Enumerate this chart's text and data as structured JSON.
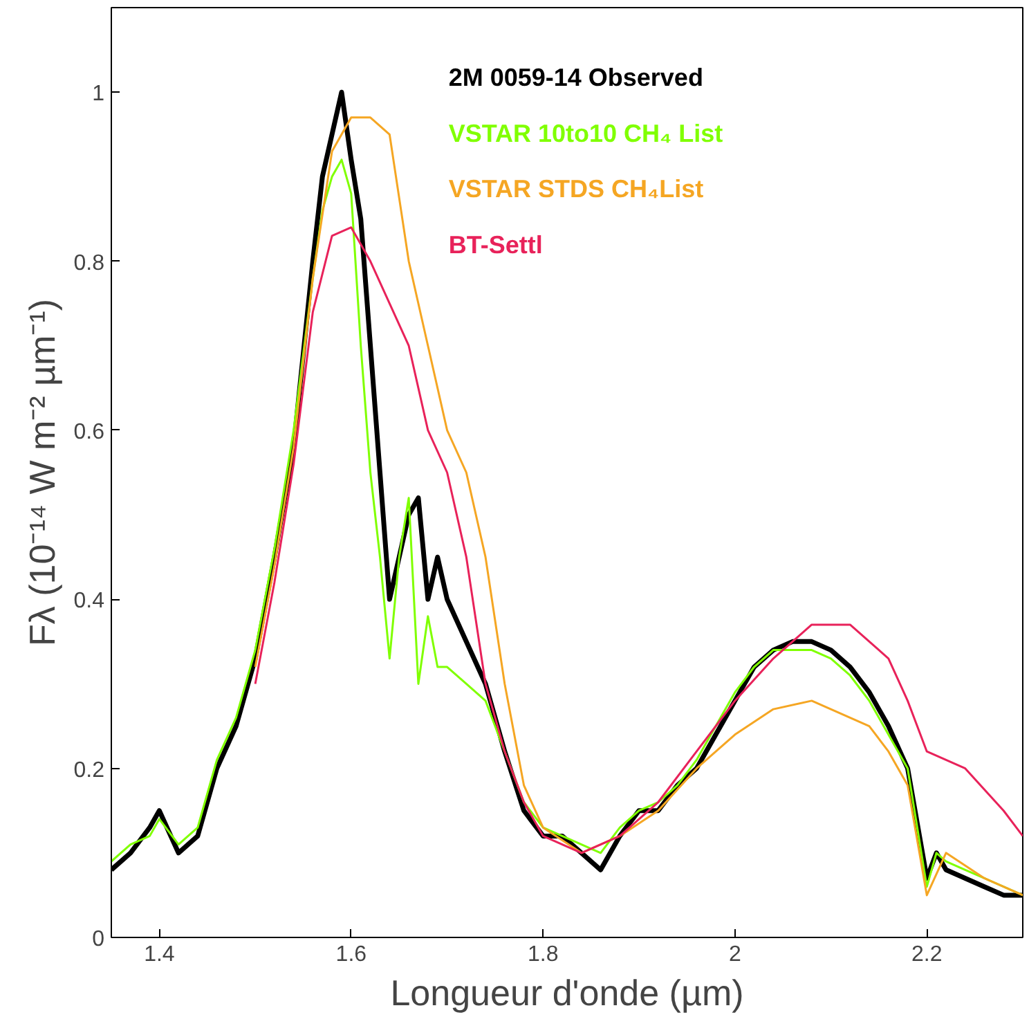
{
  "chart_data": {
    "type": "line",
    "xlabel": "Longueur d'onde (µm)",
    "ylabel": "Fλ (10⁻¹⁴ W m⁻² µm⁻¹)",
    "xlim": [
      1.35,
      2.3
    ],
    "ylim": [
      0,
      1.1
    ],
    "xticks": [
      1.4,
      1.6,
      1.8,
      2,
      2.2
    ],
    "yticks": [
      0,
      0.2,
      0.4,
      0.6,
      0.8,
      1
    ],
    "grid": false,
    "legend": "top right",
    "line_style": "solid",
    "marker": "none",
    "series": [
      {
        "name": "2M 0059-14 Observed",
        "color": "#000000",
        "x": [
          1.35,
          1.37,
          1.39,
          1.4,
          1.42,
          1.44,
          1.46,
          1.48,
          1.5,
          1.52,
          1.54,
          1.56,
          1.57,
          1.58,
          1.59,
          1.6,
          1.61,
          1.62,
          1.63,
          1.64,
          1.65,
          1.66,
          1.67,
          1.68,
          1.69,
          1.7,
          1.72,
          1.74,
          1.76,
          1.78,
          1.8,
          1.82,
          1.84,
          1.86,
          1.88,
          1.9,
          1.92,
          1.94,
          1.96,
          1.98,
          2.0,
          2.02,
          2.04,
          2.06,
          2.08,
          2.1,
          2.12,
          2.14,
          2.16,
          2.18,
          2.2,
          2.21,
          2.22,
          2.24,
          2.26,
          2.28,
          2.3
        ],
        "values": [
          0.08,
          0.1,
          0.13,
          0.15,
          0.1,
          0.12,
          0.2,
          0.25,
          0.33,
          0.45,
          0.58,
          0.8,
          0.9,
          0.95,
          1.0,
          0.92,
          0.85,
          0.7,
          0.55,
          0.4,
          0.45,
          0.5,
          0.52,
          0.4,
          0.45,
          0.4,
          0.35,
          0.3,
          0.22,
          0.15,
          0.12,
          0.12,
          0.1,
          0.08,
          0.12,
          0.15,
          0.15,
          0.18,
          0.2,
          0.24,
          0.28,
          0.32,
          0.34,
          0.35,
          0.35,
          0.34,
          0.32,
          0.29,
          0.25,
          0.2,
          0.07,
          0.1,
          0.08,
          0.07,
          0.06,
          0.05,
          0.05
        ]
      },
      {
        "name": "VSTAR 10to10  CH₄ List",
        "color": "#80ff00",
        "x": [
          1.35,
          1.37,
          1.39,
          1.4,
          1.42,
          1.44,
          1.46,
          1.48,
          1.5,
          1.52,
          1.54,
          1.56,
          1.57,
          1.58,
          1.59,
          1.6,
          1.61,
          1.62,
          1.63,
          1.64,
          1.65,
          1.66,
          1.67,
          1.68,
          1.69,
          1.7,
          1.72,
          1.74,
          1.76,
          1.78,
          1.8,
          1.82,
          1.84,
          1.86,
          1.88,
          1.9,
          1.92,
          1.94,
          1.96,
          1.98,
          2.0,
          2.02,
          2.04,
          2.06,
          2.08,
          2.1,
          2.12,
          2.14,
          2.16,
          2.18,
          2.2,
          2.21,
          2.22,
          2.24,
          2.26,
          2.28,
          2.3
        ],
        "values": [
          0.09,
          0.11,
          0.12,
          0.14,
          0.11,
          0.13,
          0.21,
          0.26,
          0.34,
          0.46,
          0.6,
          0.78,
          0.86,
          0.9,
          0.92,
          0.88,
          0.7,
          0.55,
          0.45,
          0.33,
          0.45,
          0.52,
          0.3,
          0.38,
          0.32,
          0.32,
          0.3,
          0.28,
          0.22,
          0.16,
          0.13,
          0.12,
          0.11,
          0.1,
          0.13,
          0.15,
          0.16,
          0.18,
          0.21,
          0.25,
          0.29,
          0.32,
          0.34,
          0.34,
          0.34,
          0.33,
          0.31,
          0.28,
          0.24,
          0.2,
          0.06,
          0.1,
          0.09,
          0.08,
          0.07,
          0.06,
          0.05
        ]
      },
      {
        "name": "VSTAR STDS CH₄List",
        "color": "#f5a623",
        "x": [
          1.5,
          1.52,
          1.54,
          1.56,
          1.58,
          1.6,
          1.62,
          1.64,
          1.66,
          1.68,
          1.7,
          1.72,
          1.74,
          1.76,
          1.78,
          1.8,
          1.84,
          1.88,
          1.92,
          1.96,
          2.0,
          2.04,
          2.08,
          2.12,
          2.14,
          2.16,
          2.18,
          2.2,
          2.22,
          2.26,
          2.3
        ],
        "values": [
          0.32,
          0.44,
          0.58,
          0.78,
          0.93,
          0.97,
          0.97,
          0.95,
          0.8,
          0.7,
          0.6,
          0.55,
          0.45,
          0.3,
          0.18,
          0.13,
          0.1,
          0.12,
          0.15,
          0.2,
          0.24,
          0.27,
          0.28,
          0.26,
          0.25,
          0.22,
          0.18,
          0.05,
          0.1,
          0.07,
          0.05
        ]
      },
      {
        "name": "BT-Settl",
        "color": "#e8225a",
        "x": [
          1.5,
          1.52,
          1.54,
          1.56,
          1.58,
          1.6,
          1.62,
          1.64,
          1.66,
          1.68,
          1.7,
          1.72,
          1.74,
          1.76,
          1.78,
          1.8,
          1.84,
          1.88,
          1.92,
          1.96,
          2.0,
          2.04,
          2.08,
          2.12,
          2.16,
          2.18,
          2.2,
          2.24,
          2.28,
          2.3
        ],
        "values": [
          0.3,
          0.42,
          0.56,
          0.74,
          0.83,
          0.84,
          0.8,
          0.75,
          0.7,
          0.6,
          0.55,
          0.45,
          0.3,
          0.22,
          0.16,
          0.12,
          0.1,
          0.12,
          0.16,
          0.22,
          0.28,
          0.33,
          0.37,
          0.37,
          0.33,
          0.28,
          0.22,
          0.2,
          0.15,
          0.12
        ]
      }
    ]
  }
}
